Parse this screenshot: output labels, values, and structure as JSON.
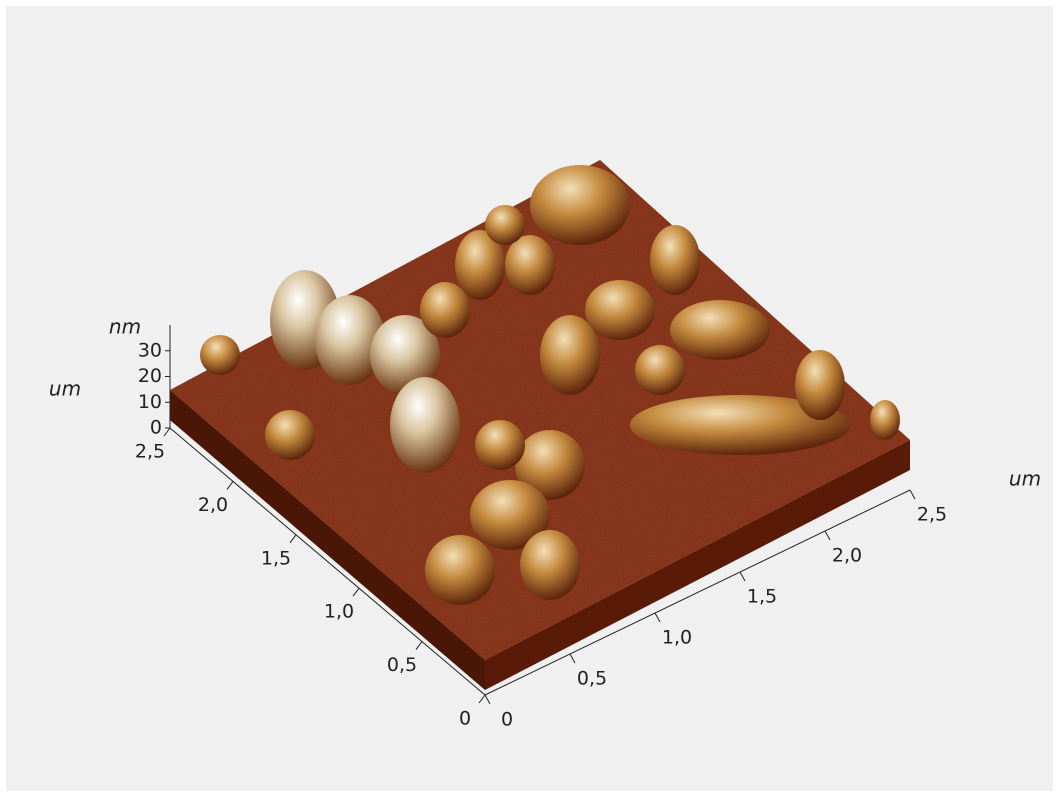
{
  "chart_data": {
    "type": "surface3d",
    "x_label": "um",
    "y_label": "um",
    "z_label": "nm",
    "xlim": [
      0,
      2.5
    ],
    "ylim": [
      0,
      2.5
    ],
    "zlim": [
      0,
      40
    ],
    "xticks": [
      0,
      {
        "value": 0.5,
        "label": "0,5"
      },
      {
        "value": 1.0,
        "label": "1,0"
      },
      {
        "value": 1.5,
        "label": "1,5"
      },
      {
        "value": 2.0,
        "label": "2,0"
      },
      {
        "value": 2.5,
        "label": "2,5"
      }
    ],
    "yticks": [
      0,
      {
        "value": 0.5,
        "label": "0,5"
      },
      {
        "value": 1.0,
        "label": "1,0"
      },
      {
        "value": 1.5,
        "label": "1,5"
      },
      {
        "value": 2.0,
        "label": "2,0"
      },
      {
        "value": 2.5,
        "label": "2,5"
      }
    ],
    "zticks": [
      0,
      10,
      20,
      30
    ],
    "axis_color": "#222222"
  }
}
